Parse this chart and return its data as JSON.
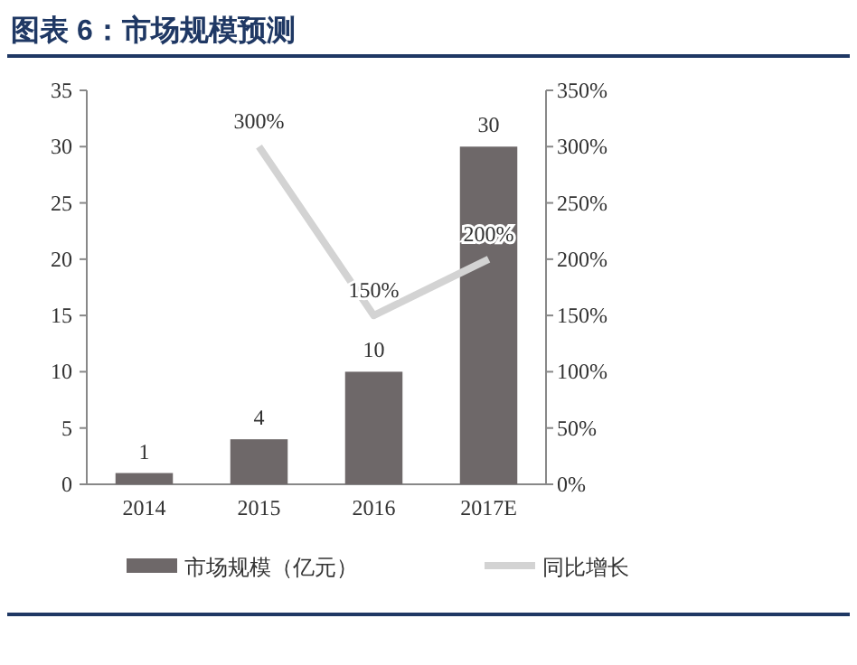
{
  "chart_data": {
    "type": "bar",
    "title": "图表 6：市场规模预测",
    "categories": [
      "2014",
      "2015",
      "2016",
      "2017E"
    ],
    "series": [
      {
        "name": "市场规模（亿元）",
        "color": "#6e6869",
        "values": [
          1,
          4,
          10,
          30
        ],
        "value_labels": [
          "1",
          "4",
          "10",
          "30"
        ]
      },
      {
        "name": "同比增长",
        "type": "line",
        "axis": "y2",
        "color": "#d3d3d3",
        "values": [
          null,
          300,
          150,
          200
        ],
        "value_labels": [
          null,
          "300%",
          "150%",
          "200%"
        ]
      }
    ],
    "ylim": [
      0,
      35
    ],
    "yticks": [
      0,
      5,
      10,
      15,
      20,
      25,
      30,
      35
    ],
    "y2lim": [
      0,
      350
    ],
    "y2ticks": [
      {
        "value": 0,
        "label": "0%"
      },
      {
        "value": 50,
        "label": "50%"
      },
      {
        "value": 100,
        "label": "100%"
      },
      {
        "value": 150,
        "label": "150%"
      },
      {
        "value": 200,
        "label": "200%"
      },
      {
        "value": 250,
        "label": "250%"
      },
      {
        "value": 300,
        "label": "300%"
      },
      {
        "value": 350,
        "label": "350%"
      }
    ],
    "legend": "bottom"
  }
}
